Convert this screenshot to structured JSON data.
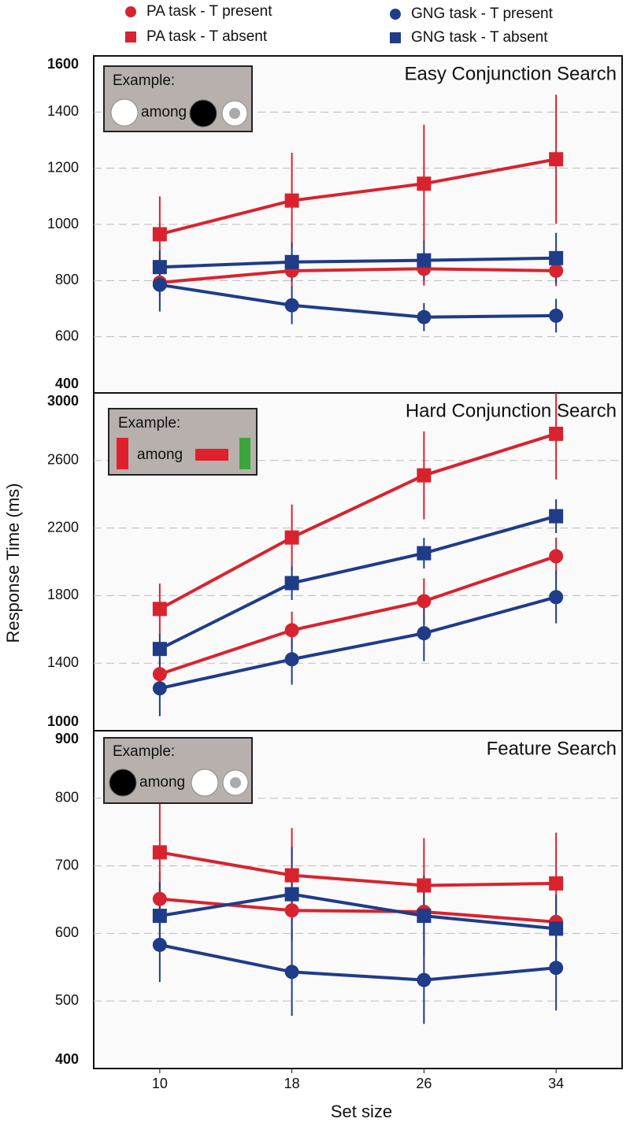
{
  "ylabel": "Response Time (ms)",
  "xlabel": "Set size",
  "chart_data": [
    {
      "type": "line",
      "title": "Easy Conjunction Search",
      "inset_label": "Example:",
      "inset_among": "among",
      "x": [
        10,
        18,
        26,
        34
      ],
      "xlim": [
        6,
        38
      ],
      "ylim": [
        400,
        1600
      ],
      "yticks": [
        400,
        600,
        800,
        1000,
        1200,
        1400,
        1600
      ],
      "grid": true,
      "series": [
        {
          "name": "PA task - T present",
          "marker": "circle",
          "color": "#d8232f",
          "values": [
            793,
            835,
            842,
            835
          ],
          "errors": [
            50,
            60,
            60,
            55
          ]
        },
        {
          "name": "PA task - T absent",
          "marker": "square",
          "color": "#d8232f",
          "values": [
            965,
            1085,
            1145,
            1232
          ],
          "errors": [
            135,
            170,
            210,
            230
          ]
        },
        {
          "name": "GNG task - T present",
          "marker": "circle",
          "color": "#1f3c88",
          "values": [
            785,
            712,
            670,
            675
          ],
          "errors": [
            95,
            67,
            50,
            60
          ]
        },
        {
          "name": "GNG task - T absent",
          "marker": "square",
          "color": "#1f3c88",
          "values": [
            848,
            866,
            872,
            880
          ],
          "errors": [
            60,
            70,
            70,
            90
          ]
        }
      ]
    },
    {
      "type": "line",
      "title": "Hard Conjunction Search",
      "inset_label": "Example:",
      "inset_among": "among",
      "x": [
        10,
        18,
        26,
        34
      ],
      "xlim": [
        6,
        38
      ],
      "ylim": [
        1000,
        3000
      ],
      "yticks": [
        1000,
        1400,
        1800,
        2200,
        2600,
        3000
      ],
      "grid": true,
      "series": [
        {
          "name": "PA task - T present",
          "marker": "circle",
          "color": "#d8232f",
          "values": [
            1335,
            1595,
            1767,
            2033
          ],
          "errors": [
            100,
            110,
            135,
            110
          ]
        },
        {
          "name": "PA task - T absent",
          "marker": "square",
          "color": "#d8232f",
          "values": [
            1721,
            2144,
            2512,
            2758
          ],
          "errors": [
            150,
            195,
            260,
            270
          ]
        },
        {
          "name": "GNG task - T present",
          "marker": "circle",
          "color": "#1f3c88",
          "values": [
            1251,
            1423,
            1577,
            1791
          ],
          "errors": [
            165,
            150,
            165,
            155
          ]
        },
        {
          "name": "GNG task - T absent",
          "marker": "square",
          "color": "#1f3c88",
          "values": [
            1484,
            1874,
            2051,
            2270
          ],
          "errors": [
            90,
            100,
            90,
            100
          ]
        }
      ]
    },
    {
      "type": "line",
      "title": "Feature Search",
      "inset_label": "Example:",
      "inset_among": "among",
      "x": [
        10,
        18,
        26,
        34
      ],
      "xlim": [
        6,
        38
      ],
      "xticks": [
        10,
        18,
        26,
        34
      ],
      "ylim": [
        400,
        900
      ],
      "yticks": [
        400,
        500,
        600,
        700,
        800,
        900
      ],
      "grid": true,
      "series": [
        {
          "name": "PA task - T present",
          "marker": "circle",
          "color": "#d8232f",
          "values": [
            651,
            634,
            632,
            617
          ],
          "errors": [
            40,
            40,
            40,
            40
          ]
        },
        {
          "name": "PA task - T absent",
          "marker": "square",
          "color": "#d8232f",
          "values": [
            720,
            686,
            671,
            674
          ],
          "errors": [
            80,
            70,
            70,
            75
          ]
        },
        {
          "name": "GNG task - T present",
          "marker": "circle",
          "color": "#1f3c88",
          "values": [
            583,
            543,
            531,
            549
          ],
          "errors": [
            55,
            65,
            65,
            63
          ]
        },
        {
          "name": "GNG task - T absent",
          "marker": "square",
          "color": "#1f3c88",
          "values": [
            626,
            658,
            626,
            607
          ],
          "errors": [
            50,
            70,
            60,
            50
          ]
        }
      ]
    }
  ]
}
